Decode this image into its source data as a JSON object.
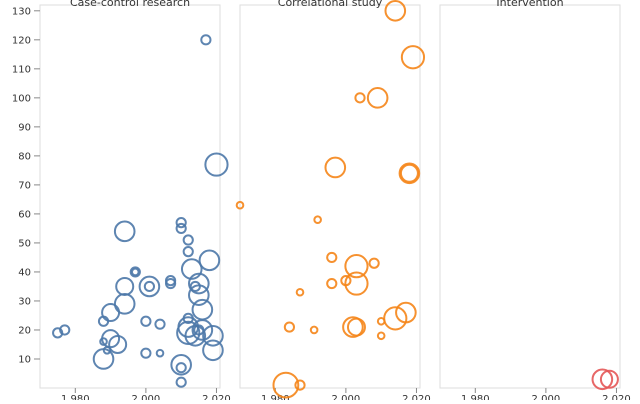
{
  "chart_data": {
    "type": "scatter",
    "subtype": "faceted-bubble",
    "y_ticks": [
      10,
      20,
      30,
      40,
      50,
      60,
      70,
      80,
      90,
      100,
      110,
      120,
      130
    ],
    "x_ticks": [
      1980,
      2000,
      2020
    ],
    "x_tick_labels": [
      "1 980",
      "2 000",
      "2 020"
    ],
    "x_range": [
      1970,
      2021
    ],
    "y_range": [
      0,
      132
    ],
    "panels": [
      {
        "title": "Case-control research",
        "color": "#4c78a8",
        "points": [
          {
            "x": 1975,
            "y": 19,
            "size": 2
          },
          {
            "x": 1977,
            "y": 20,
            "size": 2
          },
          {
            "x": 1988,
            "y": 23,
            "size": 2
          },
          {
            "x": 1988,
            "y": 16,
            "size": 1
          },
          {
            "x": 1989,
            "y": 13,
            "size": 1
          },
          {
            "x": 1988,
            "y": 10,
            "size": 6
          },
          {
            "x": 1990,
            "y": 26,
            "size": 5
          },
          {
            "x": 1990,
            "y": 17,
            "size": 5
          },
          {
            "x": 1992,
            "y": 15,
            "size": 5
          },
          {
            "x": 1994,
            "y": 54,
            "size": 6
          },
          {
            "x": 1994,
            "y": 35,
            "size": 5
          },
          {
            "x": 1994,
            "y": 29,
            "size": 6
          },
          {
            "x": 1997,
            "y": 40,
            "size": 2
          },
          {
            "x": 1997,
            "y": 40,
            "size": 1
          },
          {
            "x": 2000,
            "y": 23,
            "size": 2
          },
          {
            "x": 2000,
            "y": 12,
            "size": 2
          },
          {
            "x": 2001,
            "y": 35,
            "size": 6
          },
          {
            "x": 2001,
            "y": 35,
            "size": 2
          },
          {
            "x": 2004,
            "y": 22,
            "size": 2
          },
          {
            "x": 2004,
            "y": 12,
            "size": 1
          },
          {
            "x": 2007,
            "y": 37,
            "size": 2
          },
          {
            "x": 2007,
            "y": 36,
            "size": 2
          },
          {
            "x": 2010,
            "y": 57,
            "size": 2
          },
          {
            "x": 2010,
            "y": 55,
            "size": 2
          },
          {
            "x": 2010,
            "y": 8,
            "size": 6
          },
          {
            "x": 2010,
            "y": 7,
            "size": 2
          },
          {
            "x": 2010,
            "y": 2,
            "size": 2
          },
          {
            "x": 2012,
            "y": 51,
            "size": 2
          },
          {
            "x": 2012,
            "y": 47,
            "size": 2
          },
          {
            "x": 2012,
            "y": 24,
            "size": 2
          },
          {
            "x": 2012,
            "y": 21,
            "size": 6
          },
          {
            "x": 2012,
            "y": 19,
            "size": 7
          },
          {
            "x": 2013,
            "y": 41,
            "size": 6
          },
          {
            "x": 2014,
            "y": 35,
            "size": 2
          },
          {
            "x": 2014,
            "y": 18,
            "size": 6
          },
          {
            "x": 2015,
            "y": 36,
            "size": 6
          },
          {
            "x": 2015,
            "y": 32,
            "size": 6
          },
          {
            "x": 2015,
            "y": 20,
            "size": 2
          },
          {
            "x": 2016,
            "y": 27,
            "size": 6
          },
          {
            "x": 2016,
            "y": 20,
            "size": 6
          },
          {
            "x": 2017,
            "y": 120,
            "size": 2
          },
          {
            "x": 2018,
            "y": 44,
            "size": 6
          },
          {
            "x": 2019,
            "y": 18,
            "size": 6
          },
          {
            "x": 2019,
            "y": 13,
            "size": 6
          },
          {
            "x": 2020,
            "y": 77,
            "size": 7
          }
        ]
      },
      {
        "title": "Correlational study",
        "color": "#f58518",
        "points": [
          {
            "x": 1970,
            "y": 63,
            "size": 1
          },
          {
            "x": 1983,
            "y": 1,
            "size": 8
          },
          {
            "x": 1984,
            "y": 21,
            "size": 2
          },
          {
            "x": 1987,
            "y": 33,
            "size": 1
          },
          {
            "x": 1987,
            "y": 1,
            "size": 2
          },
          {
            "x": 1991,
            "y": 20,
            "size": 1
          },
          {
            "x": 1992,
            "y": 58,
            "size": 1
          },
          {
            "x": 1996,
            "y": 45,
            "size": 2
          },
          {
            "x": 1996,
            "y": 36,
            "size": 2
          },
          {
            "x": 1997,
            "y": 76,
            "size": 6
          },
          {
            "x": 2000,
            "y": 37,
            "size": 2
          },
          {
            "x": 2002,
            "y": 21,
            "size": 6
          },
          {
            "x": 2003,
            "y": 42,
            "size": 7
          },
          {
            "x": 2003,
            "y": 36,
            "size": 7
          },
          {
            "x": 2003,
            "y": 21,
            "size": 5
          },
          {
            "x": 2004,
            "y": 100,
            "size": 2
          },
          {
            "x": 2008,
            "y": 43,
            "size": 2
          },
          {
            "x": 2009,
            "y": 100,
            "size": 6
          },
          {
            "x": 2010,
            "y": 23,
            "size": 1
          },
          {
            "x": 2010,
            "y": 18,
            "size": 1
          },
          {
            "x": 2014,
            "y": 24,
            "size": 7
          },
          {
            "x": 2014,
            "y": 130,
            "size": 6
          },
          {
            "x": 2017,
            "y": 26,
            "size": 6
          },
          {
            "x": 2018,
            "y": 74,
            "size": 6
          },
          {
            "x": 2018,
            "y": 74,
            "size": 5
          },
          {
            "x": 2019,
            "y": 114,
            "size": 7
          }
        ]
      },
      {
        "title": "Intervention",
        "color": "#e45756",
        "points": [
          {
            "x": 2016,
            "y": 3,
            "size": 6
          },
          {
            "x": 2018,
            "y": 3,
            "size": 5
          }
        ]
      }
    ]
  }
}
